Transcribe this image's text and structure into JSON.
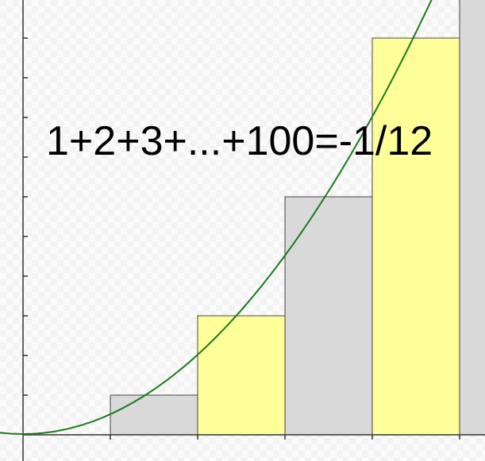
{
  "equation": "1+2+3+...+100=-1/12",
  "colors": {
    "yellow_fill": "#ffff99",
    "gray_fill": "#d9d9d9",
    "curve": "#1a7a1a",
    "axis": "#333333",
    "step_outline": "#444444"
  },
  "chart_data": {
    "type": "area",
    "description_free": true,
    "steps": [
      {
        "n": 1,
        "value": 1,
        "fill": "gray"
      },
      {
        "n": 2,
        "value": 3,
        "fill": "yellow"
      },
      {
        "n": 3,
        "value": 6,
        "fill": "gray"
      },
      {
        "n": 4,
        "value": 10,
        "fill": "yellow"
      },
      {
        "n": 5,
        "value": 15,
        "fill": "gray"
      }
    ],
    "curve": {
      "type": "parabola",
      "formula": "y = x^2 / 2"
    },
    "x_ticks": [
      1,
      2,
      3,
      4,
      5
    ],
    "y_ticks": [
      1,
      2,
      3,
      4,
      5,
      6,
      7,
      8,
      9,
      10,
      11
    ],
    "grid": false
  }
}
